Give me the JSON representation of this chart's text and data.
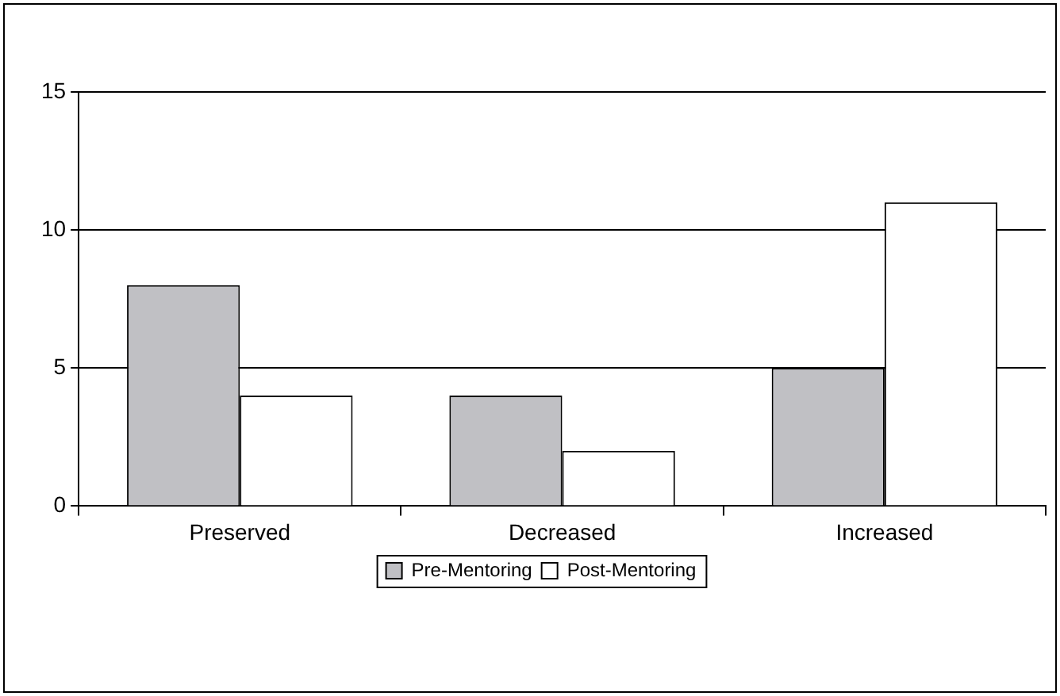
{
  "chart_data": {
    "type": "bar",
    "categories": [
      "Preserved",
      "Decreased",
      "Increased"
    ],
    "series": [
      {
        "name": "Pre-Mentoring",
        "color": "#c0c0c4",
        "values": [
          8,
          4,
          5
        ]
      },
      {
        "name": "Post-Mentoring",
        "color": "#ffffff",
        "values": [
          4,
          2,
          11
        ]
      }
    ],
    "ylim": [
      0,
      15
    ],
    "yticks": [
      0,
      5,
      10,
      15
    ],
    "grid": "y",
    "legend": "bottom"
  }
}
